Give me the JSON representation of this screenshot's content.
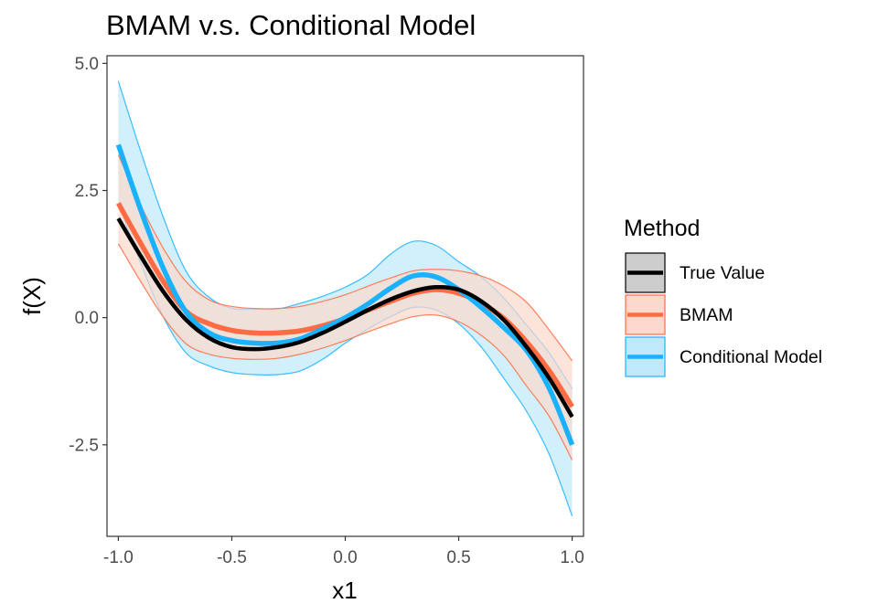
{
  "chart_data": {
    "type": "line",
    "title": "BMAM v.s. Conditional Model",
    "xlabel": "x1",
    "ylabel": "f(X)",
    "xlim": [
      -1.05,
      1.05
    ],
    "ylim": [
      -4.3,
      5.15
    ],
    "xticks": [
      "-1.0",
      "-0.5",
      "0.0",
      "0.5",
      "1.0"
    ],
    "xtick_values": [
      -1.0,
      -0.5,
      0.0,
      0.5,
      1.0
    ],
    "yticks": [
      "5.0",
      "2.5",
      "0.0",
      "-2.5"
    ],
    "ytick_values": [
      5.0,
      2.5,
      0.0,
      -2.5
    ],
    "grid": false,
    "legend": {
      "title": "Method",
      "position": "right"
    },
    "x": [
      -1.0,
      -0.9,
      -0.8,
      -0.7,
      -0.6,
      -0.5,
      -0.4,
      -0.3,
      -0.2,
      -0.1,
      0.0,
      0.1,
      0.2,
      0.3,
      0.4,
      0.5,
      0.6,
      0.7,
      0.8,
      0.9,
      1.0
    ],
    "series": [
      {
        "name": "Conditional Model",
        "color": "#1ab2ff",
        "fill": "#bfe9fa",
        "values": [
          3.4,
          2.1,
          0.95,
          0.1,
          -0.3,
          -0.45,
          -0.5,
          -0.5,
          -0.42,
          -0.22,
          0.0,
          0.27,
          0.58,
          0.82,
          0.8,
          0.55,
          0.2,
          -0.2,
          -0.65,
          -1.4,
          -2.5
        ],
        "lower": [
          2.25,
          1.05,
          0.0,
          -0.7,
          -0.95,
          -1.08,
          -1.12,
          -1.12,
          -1.05,
          -0.82,
          -0.5,
          -0.22,
          0.02,
          0.2,
          0.15,
          -0.12,
          -0.58,
          -1.2,
          -1.85,
          -2.7,
          -3.9
        ],
        "upper": [
          4.65,
          3.25,
          1.95,
          0.9,
          0.4,
          0.18,
          0.17,
          0.17,
          0.28,
          0.42,
          0.6,
          0.85,
          1.25,
          1.5,
          1.42,
          1.1,
          0.8,
          0.38,
          -0.15,
          -0.7,
          -1.4
        ]
      },
      {
        "name": "BMAM",
        "color": "#ff6b42",
        "fill": "#fcd9cc",
        "values": [
          2.25,
          1.45,
          0.7,
          0.12,
          -0.12,
          -0.25,
          -0.3,
          -0.3,
          -0.26,
          -0.16,
          -0.02,
          0.15,
          0.32,
          0.48,
          0.55,
          0.48,
          0.28,
          -0.02,
          -0.48,
          -1.05,
          -1.75
        ],
        "lower": [
          1.45,
          0.7,
          0.0,
          -0.52,
          -0.72,
          -0.8,
          -0.82,
          -0.8,
          -0.72,
          -0.6,
          -0.45,
          -0.28,
          -0.12,
          0.02,
          0.05,
          -0.08,
          -0.35,
          -0.75,
          -1.35,
          -1.95,
          -2.8
        ],
        "upper": [
          3.2,
          2.2,
          1.35,
          0.7,
          0.35,
          0.22,
          0.18,
          0.18,
          0.22,
          0.32,
          0.45,
          0.62,
          0.78,
          0.92,
          0.95,
          0.92,
          0.82,
          0.62,
          0.3,
          -0.25,
          -0.85
        ]
      },
      {
        "name": "True Value",
        "color": "#000000",
        "fill": "#cccccc",
        "values": [
          1.95,
          1.2,
          0.5,
          -0.05,
          -0.4,
          -0.58,
          -0.62,
          -0.58,
          -0.48,
          -0.3,
          -0.08,
          0.15,
          0.36,
          0.52,
          0.6,
          0.55,
          0.32,
          -0.05,
          -0.58,
          -1.2,
          -1.95
        ]
      }
    ]
  }
}
